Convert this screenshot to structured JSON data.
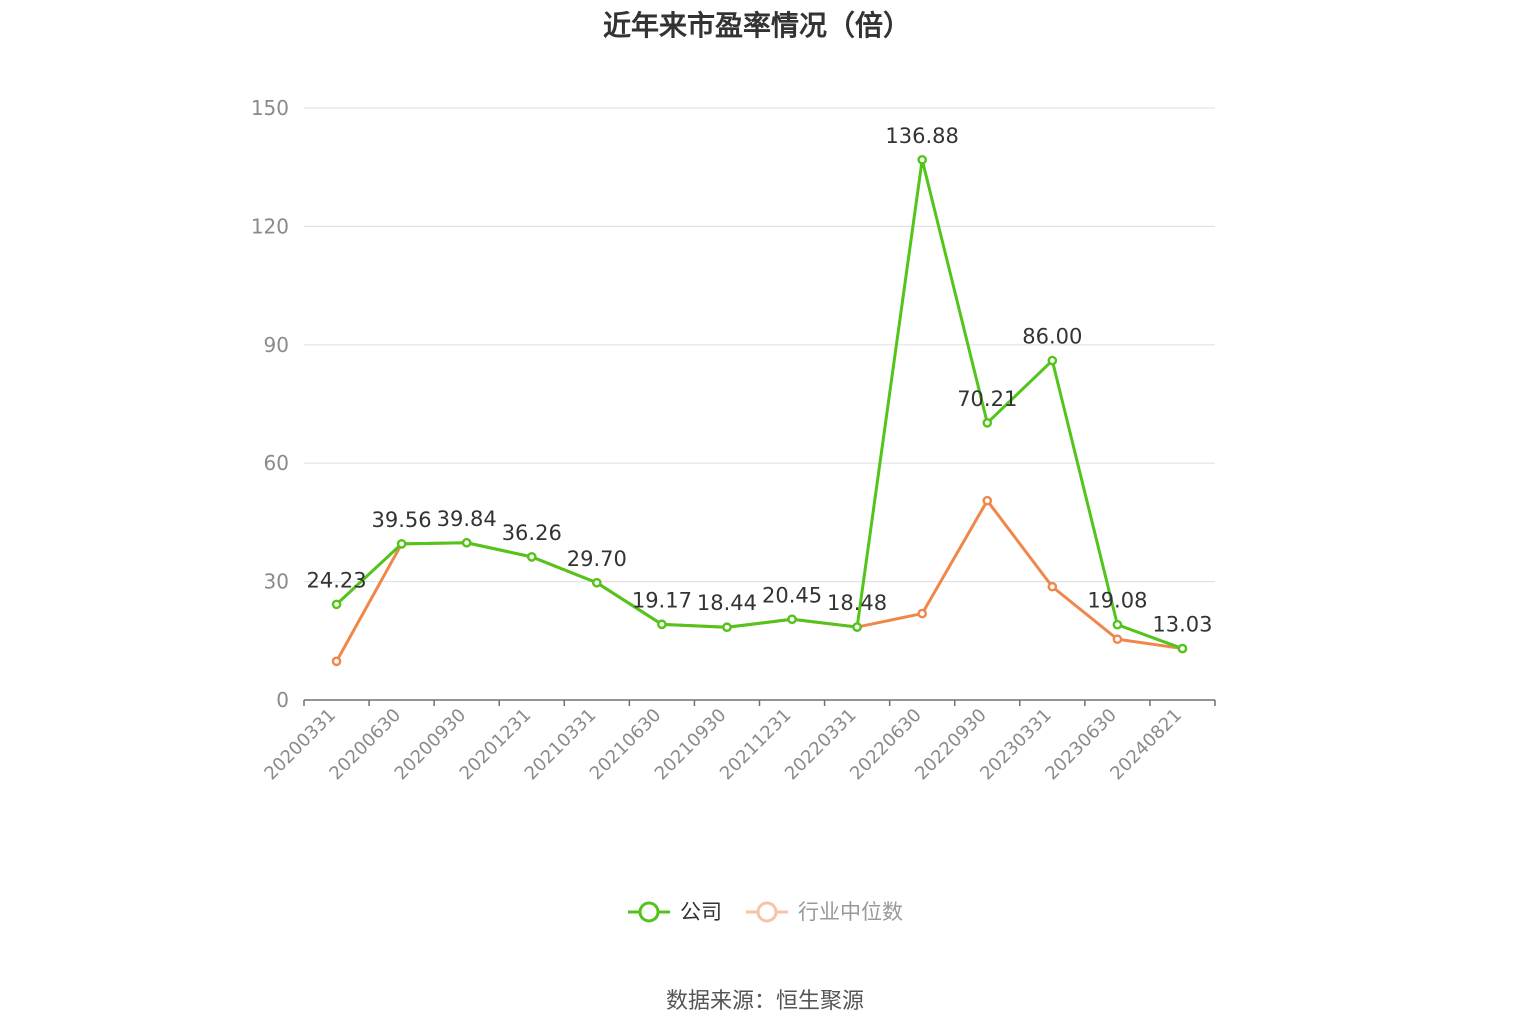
{
  "chart_data": {
    "type": "line",
    "title": "近年来市盈率情况（倍）",
    "categories": [
      "20200331",
      "20200630",
      "20200930",
      "20201231",
      "20210331",
      "20210630",
      "20210930",
      "20211231",
      "20220331",
      "20220630",
      "20220930",
      "20230331",
      "20230630",
      "20240821"
    ],
    "ylim": [
      0,
      150
    ],
    "yticks": [
      0,
      30,
      60,
      90,
      120,
      150
    ],
    "grid": true,
    "legend_position": "bottom-center",
    "series": [
      {
        "name": "公司",
        "color": "#52c41a",
        "values": [
          24.23,
          39.56,
          39.84,
          36.26,
          29.7,
          19.17,
          18.44,
          20.45,
          18.48,
          136.88,
          70.21,
          86.0,
          19.08,
          13.03
        ],
        "labels": [
          "24.23",
          "39.56",
          "39.84",
          "36.26",
          "29.70",
          "19.17",
          "18.44",
          "20.45",
          "18.48",
          "136.88",
          "70.21",
          "86.00",
          "19.08",
          "13.03"
        ]
      },
      {
        "name": "行业中位数",
        "color": "#f0874a",
        "values": [
          9.8,
          39.56,
          39.84,
          36.26,
          29.7,
          19.17,
          18.44,
          20.45,
          18.48,
          21.9,
          50.5,
          28.7,
          15.4,
          13.03
        ]
      }
    ],
    "source": "数据来源：恒生聚源"
  }
}
